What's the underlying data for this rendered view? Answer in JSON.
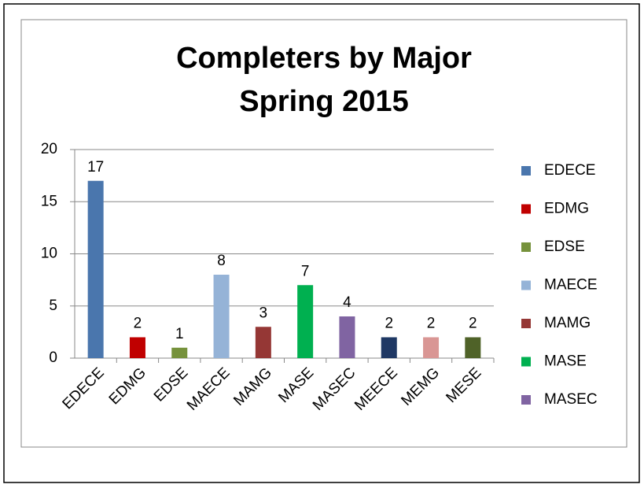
{
  "chart_data": {
    "type": "bar",
    "title": "Completers by Major",
    "subtitle": "Spring 2015",
    "categories": [
      "EDECE",
      "EDMG",
      "EDSE",
      "MAECE",
      "MAMG",
      "MASE",
      "MASEC",
      "MEECE",
      "MEMG",
      "MESE"
    ],
    "values": [
      17,
      2,
      1,
      8,
      3,
      7,
      4,
      2,
      2,
      2
    ],
    "colors": [
      "#4a76ad",
      "#c00000",
      "#76923c",
      "#95b3d7",
      "#953735",
      "#00b050",
      "#8064a2",
      "#1f3864",
      "#d99694",
      "#4f6228"
    ],
    "legend": [
      "EDECE",
      "EDMG",
      "EDSE",
      "MAECE",
      "MAMG",
      "MASE",
      "MASEC"
    ],
    "ylim": [
      0,
      20
    ],
    "yticks": [
      0,
      5,
      10,
      15,
      20
    ],
    "grid": true
  }
}
